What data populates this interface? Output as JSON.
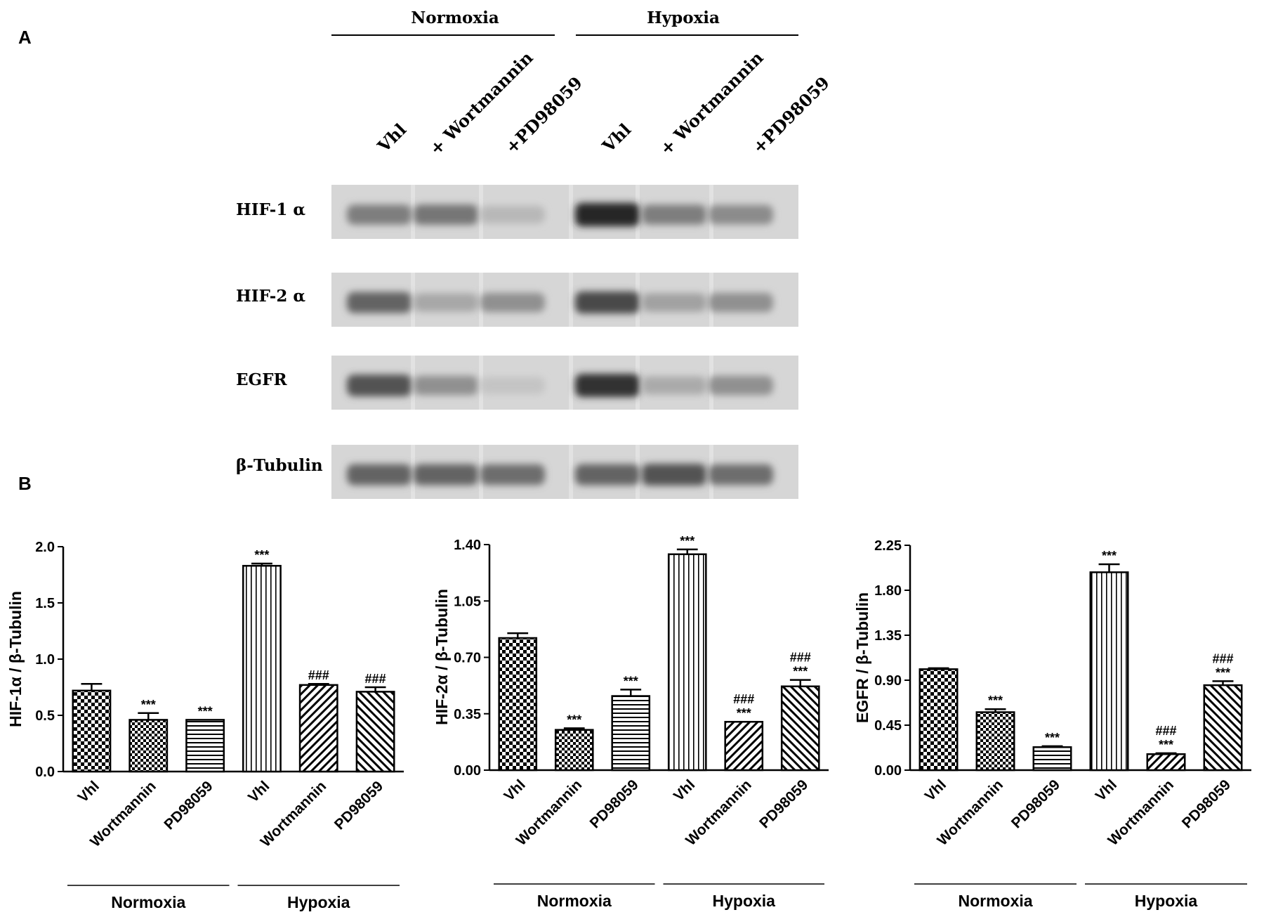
{
  "panel_labels": {
    "a": "A",
    "b": "B"
  },
  "blot": {
    "groups": [
      {
        "label": "Normoxia"
      },
      {
        "label": "Hypoxia"
      }
    ],
    "lanes": [
      "Vhl",
      "+ Wortmannin",
      "+PD98059",
      "Vhl",
      "+ Wortmannin",
      "+PD98059"
    ],
    "rows": [
      {
        "label": "HIF-1 α",
        "intensity": [
          0.45,
          0.5,
          0.12,
          0.95,
          0.45,
          0.38
        ]
      },
      {
        "label": "HIF-2 α",
        "intensity": [
          0.6,
          0.22,
          0.35,
          0.75,
          0.25,
          0.35
        ]
      },
      {
        "label": "EGFR",
        "intensity": [
          0.7,
          0.35,
          0.05,
          0.9,
          0.2,
          0.35
        ]
      },
      {
        "label": "β-Tubulin",
        "intensity": [
          0.6,
          0.6,
          0.55,
          0.6,
          0.7,
          0.55
        ]
      }
    ]
  },
  "chart_data": [
    {
      "type": "bar",
      "ylabel": "HIF-1α / β-Tubulin",
      "ylim": [
        0,
        2.0
      ],
      "yticks": [
        "0.0",
        "0.5",
        "1.0",
        "1.5",
        "2.0"
      ],
      "categories": [
        "Vhl",
        "Wortmannin",
        "PD98059",
        "Vhl",
        "Wortmannin",
        "PD98059"
      ],
      "groups": [
        "Normoxia",
        "Hypoxia"
      ],
      "values": [
        0.72,
        0.46,
        0.46,
        1.83,
        0.77,
        0.71
      ],
      "errors": [
        0.06,
        0.06,
        0.0,
        0.02,
        0.01,
        0.04
      ],
      "patterns": [
        "checker",
        "checker-fine",
        "horizontal",
        "vertical",
        "diag-right",
        "diag-left"
      ],
      "annotations": [
        [
          "",
          ""
        ],
        [
          "",
          "***"
        ],
        [
          "",
          "***"
        ],
        [
          "",
          "***"
        ],
        [
          "",
          "###"
        ],
        [
          "",
          "###"
        ]
      ]
    },
    {
      "type": "bar",
      "ylabel": "HIF-2α / β-Tubulin",
      "ylim": [
        0,
        1.4
      ],
      "yticks": [
        "0.00",
        "0.35",
        "0.70",
        "1.05",
        "1.40"
      ],
      "categories": [
        "Vhl",
        "Wortmannin",
        "PD98059",
        "Vhl",
        "Wortmannin",
        "PD98059"
      ],
      "groups": [
        "Normoxia",
        "Hypoxia"
      ],
      "values": [
        0.82,
        0.25,
        0.46,
        1.34,
        0.3,
        0.52
      ],
      "errors": [
        0.03,
        0.01,
        0.04,
        0.03,
        0.0,
        0.04
      ],
      "patterns": [
        "checker",
        "checker-fine",
        "horizontal",
        "vertical",
        "diag-right",
        "diag-left"
      ],
      "annotations": [
        [
          "",
          ""
        ],
        [
          "",
          "***"
        ],
        [
          "",
          "***"
        ],
        [
          "",
          "***"
        ],
        [
          "###",
          "***"
        ],
        [
          "###",
          "***"
        ]
      ]
    },
    {
      "type": "bar",
      "ylabel": "EGFR / β-Tubulin",
      "ylim": [
        0,
        2.25
      ],
      "yticks": [
        "0.00",
        "0.45",
        "0.90",
        "1.35",
        "1.80",
        "2.25"
      ],
      "categories": [
        "Vhl",
        "Wortmannin",
        "PD98059",
        "Vhl",
        "Wortmannin",
        "PD98059"
      ],
      "groups": [
        "Normoxia",
        "Hypoxia"
      ],
      "values": [
        1.01,
        0.58,
        0.23,
        1.98,
        0.16,
        0.85
      ],
      "errors": [
        0.01,
        0.03,
        0.01,
        0.08,
        0.01,
        0.04
      ],
      "patterns": [
        "checker",
        "checker-fine",
        "horizontal",
        "vertical",
        "diag-right",
        "diag-left"
      ],
      "annotations": [
        [
          "",
          ""
        ],
        [
          "",
          "***"
        ],
        [
          "",
          "***"
        ],
        [
          "",
          "***"
        ],
        [
          "###",
          "***"
        ],
        [
          "###",
          "***"
        ]
      ]
    }
  ]
}
